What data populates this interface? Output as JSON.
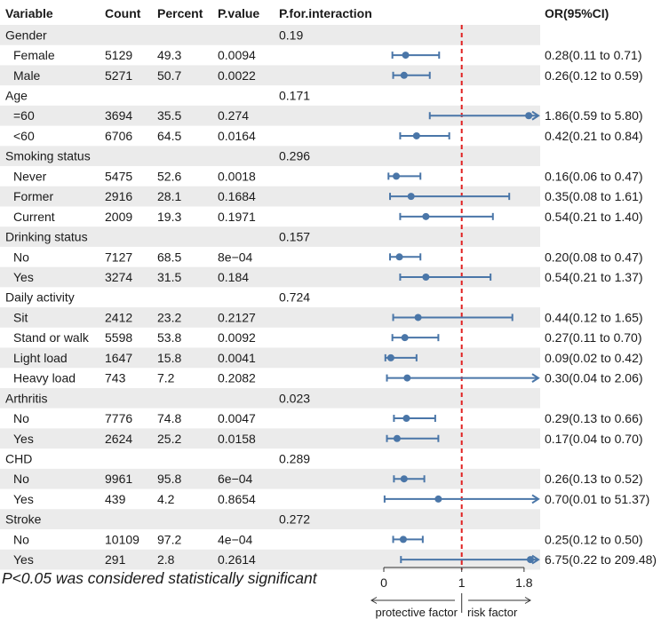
{
  "chart_data": {
    "type": "forest",
    "columns": [
      "Variable",
      "Count",
      "Percent",
      "P.value",
      "P.for.interaction",
      "OR(95%CI)"
    ],
    "rows": [
      {
        "label": "Gender",
        "group": true,
        "p_interaction": "0.19"
      },
      {
        "label": "Female",
        "count": "5129",
        "percent": "49.3",
        "p_value": "0.0094",
        "or": 0.28,
        "lower": 0.11,
        "upper": 0.71,
        "or_text": "0.28(0.11 to 0.71)"
      },
      {
        "label": "Male",
        "count": "5271",
        "percent": "50.7",
        "p_value": "0.0022",
        "or": 0.26,
        "lower": 0.12,
        "upper": 0.59,
        "or_text": "0.26(0.12 to 0.59)"
      },
      {
        "label": "Age",
        "group": true,
        "p_interaction": "0.171"
      },
      {
        "label": "=60",
        "count": "3694",
        "percent": "35.5",
        "p_value": "0.274",
        "or": 1.86,
        "lower": 0.59,
        "upper": 5.8,
        "or_text": "1.86(0.59 to 5.80)"
      },
      {
        "label": "<60",
        "count": "6706",
        "percent": "64.5",
        "p_value": "0.0164",
        "or": 0.42,
        "lower": 0.21,
        "upper": 0.84,
        "or_text": "0.42(0.21 to 0.84)"
      },
      {
        "label": "Smoking status",
        "group": true,
        "p_interaction": "0.296"
      },
      {
        "label": "Never",
        "count": "5475",
        "percent": "52.6",
        "p_value": "0.0018",
        "or": 0.16,
        "lower": 0.06,
        "upper": 0.47,
        "or_text": "0.16(0.06 to 0.47)"
      },
      {
        "label": "Former",
        "count": "2916",
        "percent": "28.1",
        "p_value": "0.1684",
        "or": 0.35,
        "lower": 0.08,
        "upper": 1.61,
        "or_text": "0.35(0.08 to 1.61)"
      },
      {
        "label": "Current",
        "count": "2009",
        "percent": "19.3",
        "p_value": "0.1971",
        "or": 0.54,
        "lower": 0.21,
        "upper": 1.4,
        "or_text": "0.54(0.21 to 1.40)"
      },
      {
        "label": "Drinking status",
        "group": true,
        "p_interaction": "0.157"
      },
      {
        "label": "No",
        "count": "7127",
        "percent": "68.5",
        "p_value": "8e−04",
        "or": 0.2,
        "lower": 0.08,
        "upper": 0.47,
        "or_text": "0.20(0.08 to 0.47)"
      },
      {
        "label": "Yes",
        "count": "3274",
        "percent": "31.5",
        "p_value": "0.184",
        "or": 0.54,
        "lower": 0.21,
        "upper": 1.37,
        "or_text": "0.54(0.21 to 1.37)"
      },
      {
        "label": "Daily activity",
        "group": true,
        "p_interaction": "0.724"
      },
      {
        "label": "Sit",
        "count": "2412",
        "percent": "23.2",
        "p_value": "0.2127",
        "or": 0.44,
        "lower": 0.12,
        "upper": 1.65,
        "or_text": "0.44(0.12 to 1.65)"
      },
      {
        "label": "Stand or walk",
        "count": "5598",
        "percent": "53.8",
        "p_value": "0.0092",
        "or": 0.27,
        "lower": 0.11,
        "upper": 0.7,
        "or_text": "0.27(0.11 to 0.70)"
      },
      {
        "label": "Light load",
        "count": "1647",
        "percent": "15.8",
        "p_value": "0.0041",
        "or": 0.09,
        "lower": 0.02,
        "upper": 0.42,
        "or_text": "0.09(0.02 to 0.42)"
      },
      {
        "label": "Heavy load",
        "count": "743",
        "percent": "7.2",
        "p_value": "0.2082",
        "or": 0.3,
        "lower": 0.04,
        "upper": 2.06,
        "or_text": "0.30(0.04 to 2.06)"
      },
      {
        "label": "Arthritis",
        "group": true,
        "p_interaction": "0.023"
      },
      {
        "label": "No",
        "count": "7776",
        "percent": "74.8",
        "p_value": "0.0047",
        "or": 0.29,
        "lower": 0.13,
        "upper": 0.66,
        "or_text": "0.29(0.13 to 0.66)"
      },
      {
        "label": "Yes",
        "count": "2624",
        "percent": "25.2",
        "p_value": "0.0158",
        "or": 0.17,
        "lower": 0.04,
        "upper": 0.7,
        "or_text": "0.17(0.04 to 0.70)"
      },
      {
        "label": "CHD",
        "group": true,
        "p_interaction": "0.289"
      },
      {
        "label": "No",
        "count": "9961",
        "percent": "95.8",
        "p_value": "6e−04",
        "or": 0.26,
        "lower": 0.13,
        "upper": 0.52,
        "or_text": "0.26(0.13 to 0.52)"
      },
      {
        "label": "Yes",
        "count": "439",
        "percent": "4.2",
        "p_value": "0.8654",
        "or": 0.7,
        "lower": 0.01,
        "upper": 51.37,
        "or_text": "0.70(0.01 to 51.37)"
      },
      {
        "label": "Stroke",
        "group": true,
        "p_interaction": "0.272"
      },
      {
        "label": "No",
        "count": "10109",
        "percent": "97.2",
        "p_value": "4e−04",
        "or": 0.25,
        "lower": 0.12,
        "upper": 0.5,
        "or_text": "0.25(0.12 to 0.50)"
      },
      {
        "label": "Yes",
        "count": "291",
        "percent": "2.8",
        "p_value": "0.2614",
        "or": 6.75,
        "lower": 0.22,
        "upper": 209.48,
        "or_text": "6.75(0.22 to 209.48)"
      }
    ],
    "x_axis": {
      "range": [
        0,
        1.8
      ],
      "ticks": [
        0,
        1,
        1.8
      ],
      "tick_labels": [
        "0",
        "1",
        "1.8"
      ]
    },
    "reference_line": 1,
    "axis_annotations": {
      "left": "protective factor",
      "right": "risk factor"
    },
    "footnote": "P<0.05 was considered statistically significant",
    "colors": {
      "point": "#4a76a8",
      "line": "#4a76a8",
      "reference": "#e02020",
      "stripe": "#ebebeb",
      "footnote": "#2b3fbf",
      "text": "#1a1a1a"
    }
  }
}
